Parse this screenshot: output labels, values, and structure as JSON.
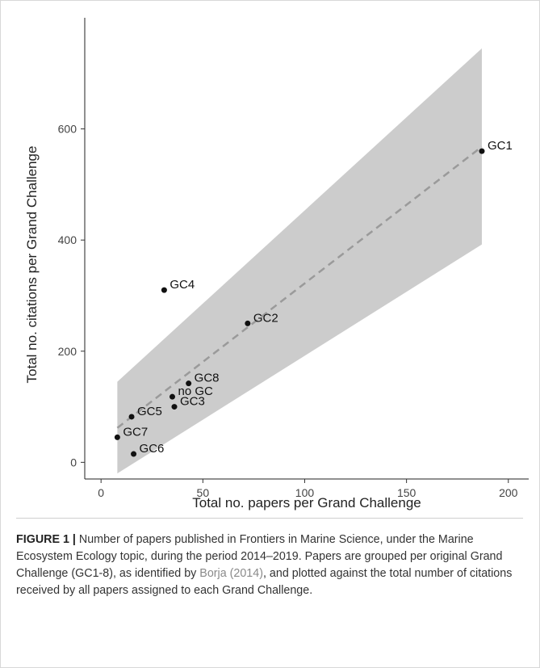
{
  "chart_data": {
    "type": "scatter",
    "xlabel": "Total no. papers per Grand Challenge",
    "ylabel": "Total no. citations per Grand Challenge",
    "xlim": [
      -8,
      210
    ],
    "ylim": [
      -30,
      800
    ],
    "xticks": [
      0,
      50,
      100,
      150,
      200
    ],
    "yticks": [
      0,
      200,
      400,
      600
    ],
    "grid": false,
    "points": [
      {
        "label": "GC1",
        "x": 187,
        "y": 560
      },
      {
        "label": "GC2",
        "x": 72,
        "y": 250
      },
      {
        "label": "GC3",
        "x": 36,
        "y": 100
      },
      {
        "label": "GC4",
        "x": 31,
        "y": 310
      },
      {
        "label": "GC5",
        "x": 15,
        "y": 82
      },
      {
        "label": "GC6",
        "x": 16,
        "y": 15
      },
      {
        "label": "GC7",
        "x": 8,
        "y": 45
      },
      {
        "label": "GC8",
        "x": 43,
        "y": 142
      },
      {
        "label": "no GC",
        "x": 35,
        "y": 118
      }
    ],
    "fit": {
      "style": "dashed",
      "x": [
        8,
        187
      ],
      "y": [
        62,
        568
      ]
    },
    "ci_band": {
      "x": [
        8,
        187
      ],
      "upper": [
        145,
        745
      ],
      "lower": [
        -20,
        392
      ]
    }
  },
  "caption": {
    "label": "FIGURE 1 |",
    "text_before_ref": " Number of papers published in Frontiers in Marine Science, under the Marine Ecosystem Ecology topic, during the period 2014–2019. Papers are grouped per original Grand Challenge (GC1-8), as identified by ",
    "ref": "Borja (2014)",
    "text_after_ref": ", and plotted against the total number of citations received by all papers assigned to each Grand Challenge."
  }
}
